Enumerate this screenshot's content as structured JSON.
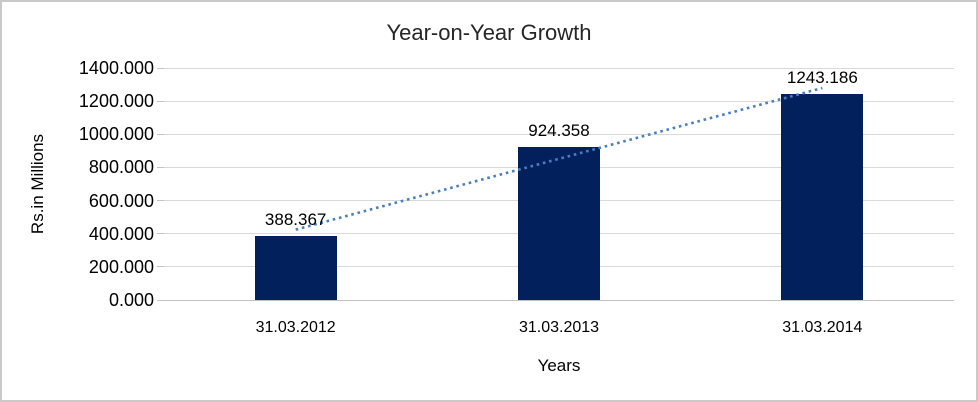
{
  "chart_data": {
    "type": "bar",
    "title": "Year-on-Year Growth",
    "xlabel": "Years",
    "ylabel": "Rs.in Millions",
    "categories": [
      "31.03.2012",
      "31.03.2013",
      "31.03.2014"
    ],
    "values": [
      388.367,
      924.358,
      1243.186
    ],
    "data_labels": [
      "388.367",
      "924.358",
      "1243.186"
    ],
    "ylim": [
      0,
      1400
    ],
    "yticks": [
      {
        "value": 0,
        "label": "0.000"
      },
      {
        "value": 200,
        "label": "200.000"
      },
      {
        "value": 400,
        "label": "400.000"
      },
      {
        "value": 600,
        "label": "600.000"
      },
      {
        "value": 800,
        "label": "800.000"
      },
      {
        "value": 1000,
        "label": "1000.000"
      },
      {
        "value": 1200,
        "label": "1200.000"
      },
      {
        "value": 1400,
        "label": "1400.000"
      }
    ],
    "grid": true,
    "legend": "none",
    "trendline": {
      "fit": "linear",
      "style": "dotted"
    },
    "colors": {
      "bar": "#02215c",
      "trendline": "#4a7ebb",
      "gridline": "#d9d9d9",
      "axis_line": "#c3c3c3",
      "text": "#000000",
      "title_text": "#262626",
      "page_border": "#c9c9c9",
      "background": "#ffffff"
    }
  }
}
